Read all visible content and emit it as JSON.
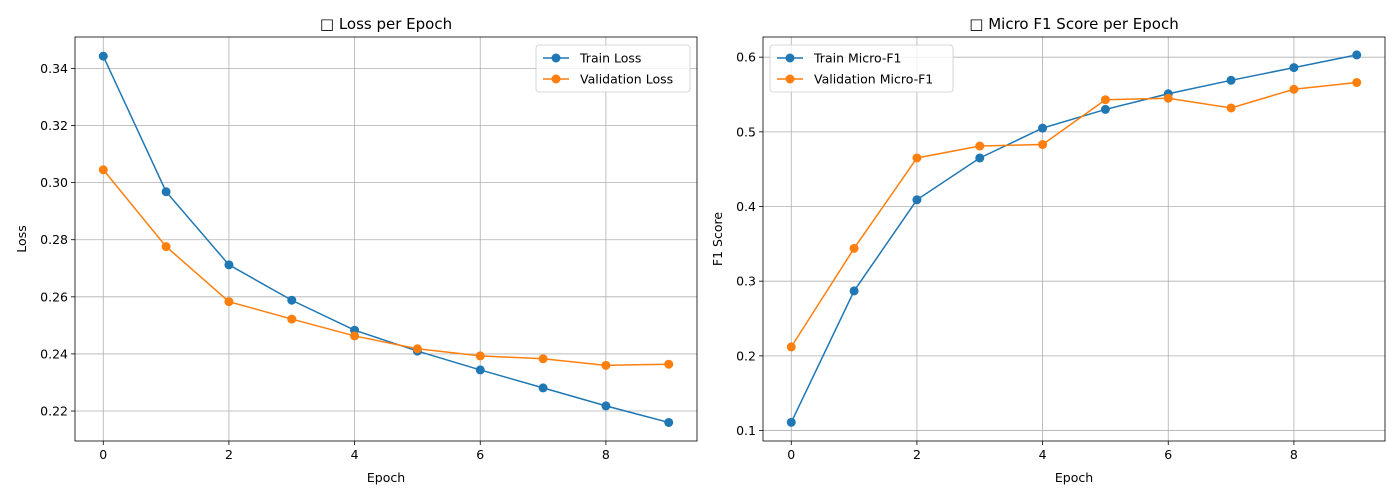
{
  "chart_data": [
    {
      "type": "line",
      "title": "□ Loss per Epoch",
      "xlabel": "Epoch",
      "ylabel": "Loss",
      "grid": true,
      "legend_position": "top-right",
      "xlim": [
        -0.45,
        9.45
      ],
      "ylim": [
        0.2095,
        0.351
      ],
      "xticks": [
        0,
        2,
        4,
        6,
        8
      ],
      "xtick_labels": [
        "0",
        "2",
        "4",
        "6",
        "8"
      ],
      "yticks": [
        0.22,
        0.24,
        0.26,
        0.28,
        0.3,
        0.32,
        0.34
      ],
      "ytick_labels": [
        "0.22",
        "0.24",
        "0.26",
        "0.28",
        "0.30",
        "0.32",
        "0.34"
      ],
      "x": [
        0,
        1,
        2,
        3,
        4,
        5,
        6,
        7,
        8,
        9
      ],
      "series": [
        {
          "name": "Train Loss",
          "color": "#1f77b4",
          "values": [
            0.3443,
            0.2968,
            0.2712,
            0.2588,
            0.2483,
            0.241,
            0.2344,
            0.2281,
            0.2218,
            0.216
          ]
        },
        {
          "name": "Validation Loss",
          "color": "#ff7f0e",
          "values": [
            0.3045,
            0.2776,
            0.2583,
            0.2522,
            0.2463,
            0.2418,
            0.2393,
            0.2383,
            0.236,
            0.2364
          ]
        }
      ]
    },
    {
      "type": "line",
      "title": "□ Micro F1 Score per Epoch",
      "xlabel": "Epoch",
      "ylabel": "F1 Score",
      "grid": true,
      "legend_position": "top-left",
      "xlim": [
        -0.45,
        9.45
      ],
      "ylim": [
        0.086,
        0.627
      ],
      "xticks": [
        0,
        2,
        4,
        6,
        8
      ],
      "xtick_labels": [
        "0",
        "2",
        "4",
        "6",
        "8"
      ],
      "yticks": [
        0.1,
        0.2,
        0.3,
        0.4,
        0.5,
        0.6
      ],
      "ytick_labels": [
        "0.1",
        "0.2",
        "0.3",
        "0.4",
        "0.5",
        "0.6"
      ],
      "x": [
        0,
        1,
        2,
        3,
        4,
        5,
        6,
        7,
        8,
        9
      ],
      "series": [
        {
          "name": "Train Micro-F1",
          "color": "#1f77b4",
          "values": [
            0.111,
            0.287,
            0.409,
            0.465,
            0.505,
            0.53,
            0.551,
            0.569,
            0.586,
            0.603
          ]
        },
        {
          "name": "Validation Micro-F1",
          "color": "#ff7f0e",
          "values": [
            0.212,
            0.344,
            0.465,
            0.481,
            0.483,
            0.543,
            0.545,
            0.532,
            0.557,
            0.566
          ]
        }
      ]
    }
  ]
}
